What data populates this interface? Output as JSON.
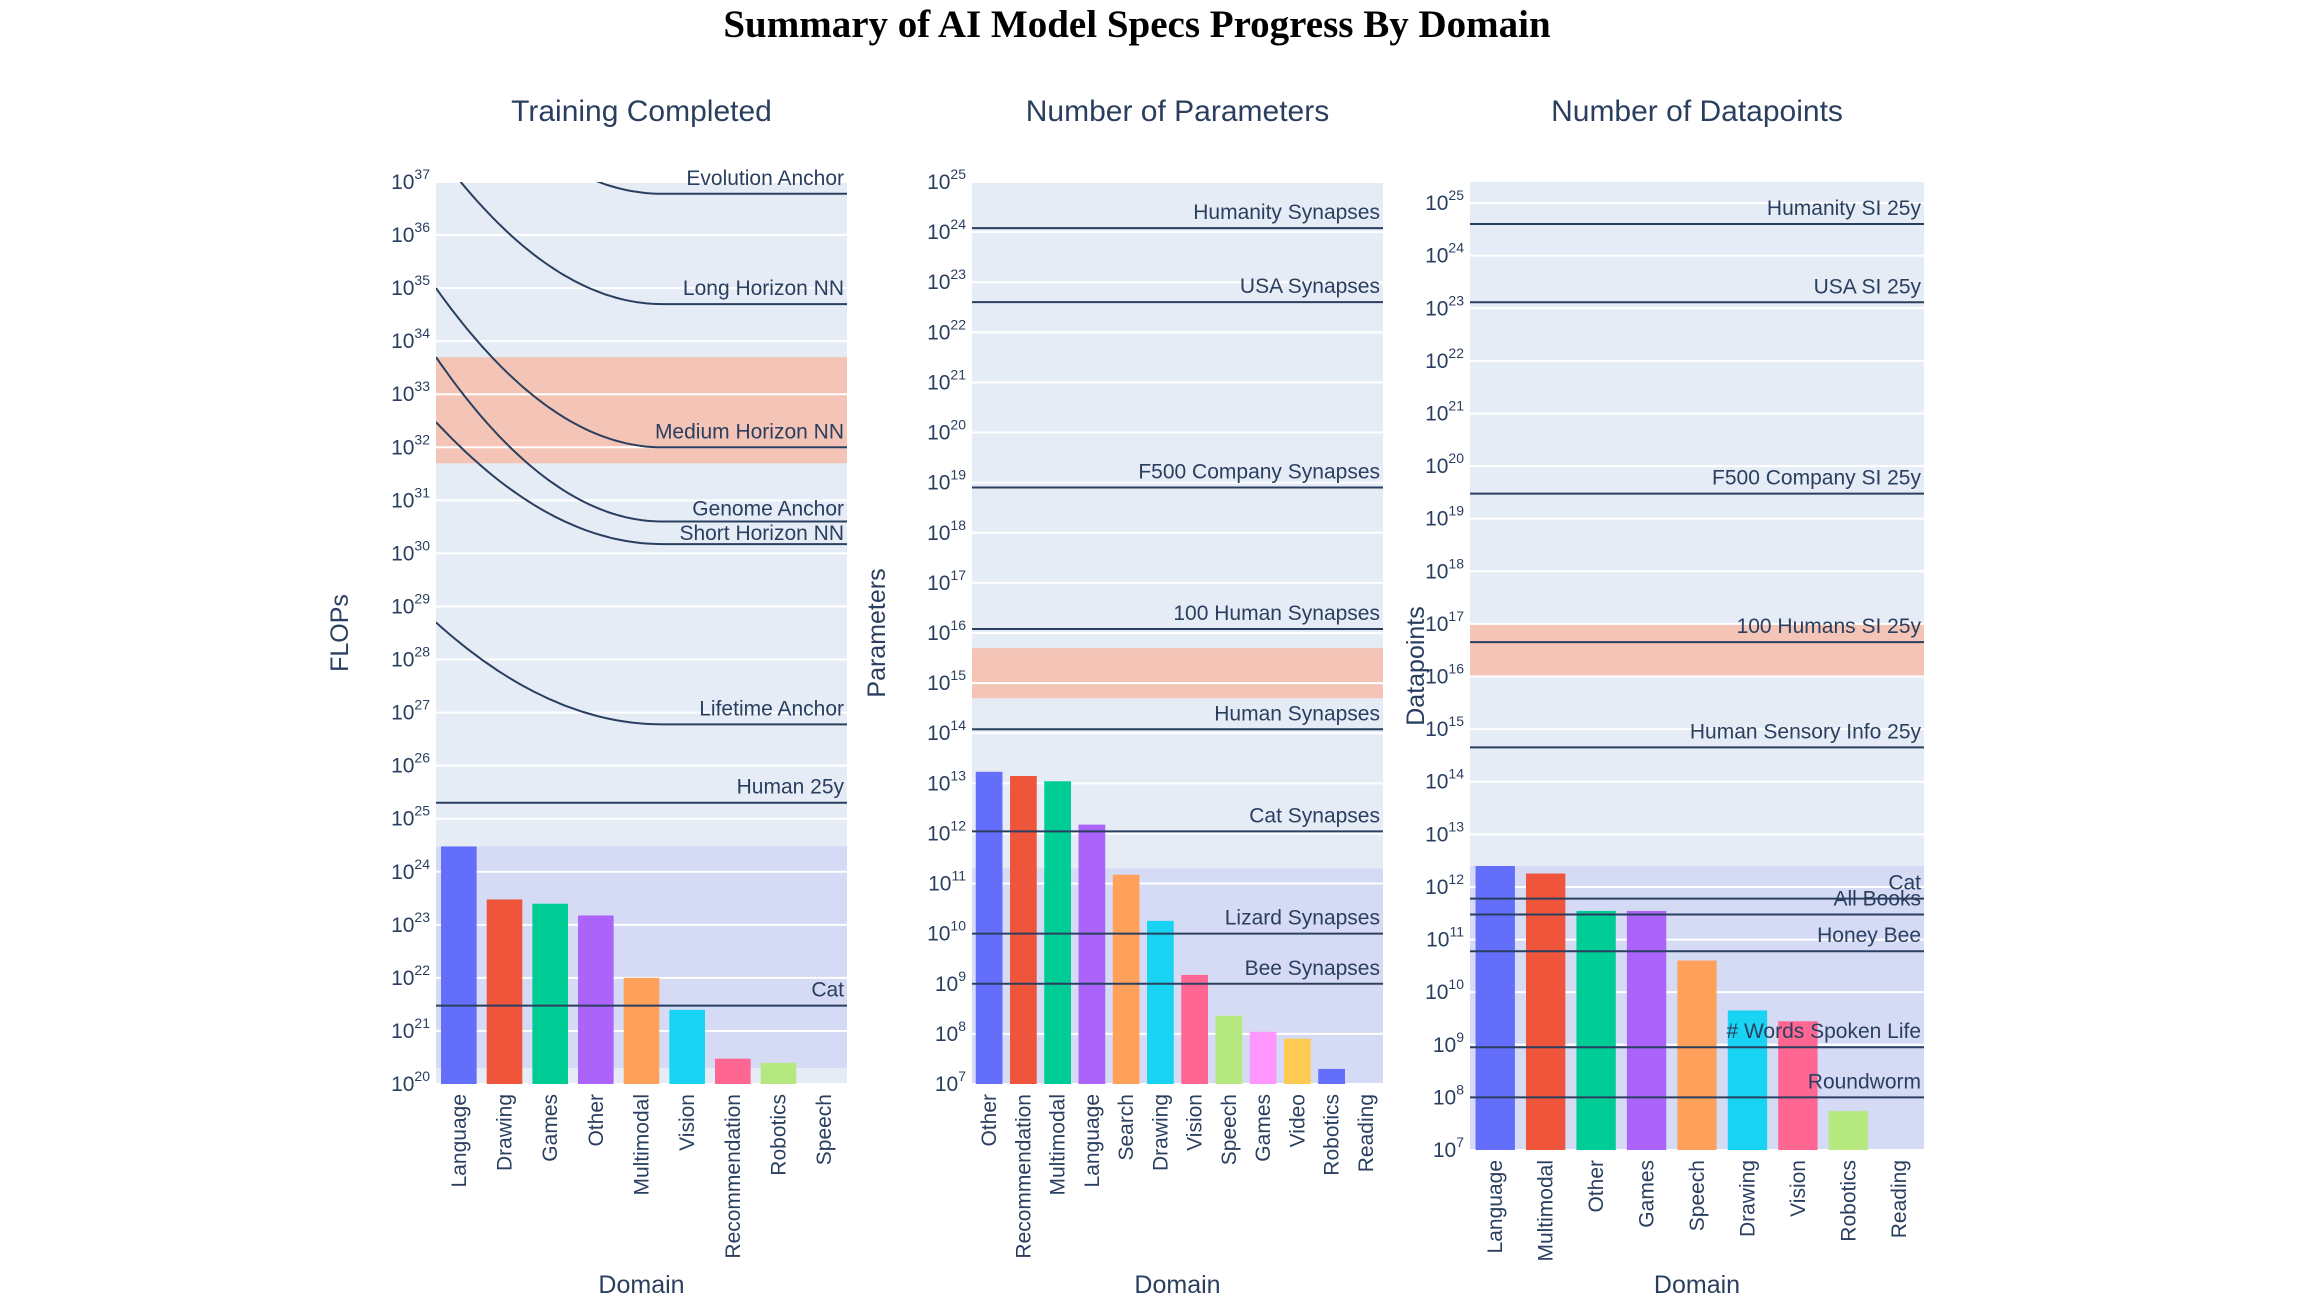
{
  "title": "Summary of AI Model Specs Progress By Domain",
  "colors": {
    "plot_bg": "#e5ecf6",
    "grid": "#ffffff",
    "band": "#f4c5b6",
    "highlight": "#d5daf5",
    "line": "#2a3f5f",
    "palette": [
      "#636efa",
      "#ef553b",
      "#00cc96",
      "#ab63fa",
      "#ffa15a",
      "#19d3f3",
      "#ff6692",
      "#b6e880",
      "#ff97ff",
      "#fecb52"
    ]
  },
  "chart_data": [
    {
      "type": "bar",
      "title": "Training Completed",
      "xlabel": "Domain",
      "ylabel": "FLOPs",
      "yscale": "log",
      "ylim_exp": [
        20,
        37
      ],
      "categories": [
        "Language",
        "Drawing",
        "Games",
        "Other",
        "Multimodal",
        "Vision",
        "Recommendation",
        "Robotics",
        "Speech"
      ],
      "values": [
        3e+24,
        3e+23,
        2.5e+23,
        1.5e+23,
        1e+22,
        2.5e+21,
        3e+20,
        2.5e+20,
        8e+19
      ],
      "highlight_band": [
        2e+20,
        3e+24
      ],
      "shaded_band": [
        5e+31,
        5e+33
      ],
      "ref_lines": [
        {
          "label": "Human 25y",
          "value": 2e+25
        },
        {
          "label": "Cat",
          "value": 3e+21
        }
      ],
      "curves": [
        {
          "label": "Evolution Anchor",
          "start": 4e+39,
          "floor": 6e+36
        },
        {
          "label": "Long Horizon NN",
          "start": 4e+37,
          "floor": 5e+34
        },
        {
          "label": "Medium Horizon NN",
          "start": 1e+35,
          "floor": 1e+32
        },
        {
          "label": "Genome Anchor",
          "start": 5e+33,
          "floor": 4e+30
        },
        {
          "label": "Short Horizon NN",
          "start": 3e+32,
          "floor": 1.5e+30
        },
        {
          "label": "Lifetime Anchor",
          "start": 5e+28,
          "floor": 6e+26
        }
      ]
    },
    {
      "type": "bar",
      "title": "Number of Parameters",
      "xlabel": "Domain",
      "ylabel": "Parameters",
      "yscale": "log",
      "ylim_exp": [
        7,
        25
      ],
      "categories": [
        "Other",
        "Recommendation",
        "Multimodal",
        "Language",
        "Search",
        "Drawing",
        "Vision",
        "Speech",
        "Games",
        "Video",
        "Robotics",
        "Reading"
      ],
      "values": [
        17000000000000.0,
        14000000000000.0,
        11000000000000.0,
        1500000000000.0,
        150000000000.0,
        18000000000.0,
        1500000000.0,
        230000000.0,
        110000000.0,
        80000000.0,
        20000000.0,
        null
      ],
      "highlight_band": [
        10000000.0,
        200000000000.0
      ],
      "shaded_band": [
        500000000000000.0,
        5000000000000000.0
      ],
      "ref_lines": [
        {
          "label": "Humanity Synapses",
          "value": 1.2e+24
        },
        {
          "label": "USA Synapses",
          "value": 4e+22
        },
        {
          "label": "F500 Company Synapses",
          "value": 8e+18
        },
        {
          "label": "100 Human Synapses",
          "value": 1.2e+16
        },
        {
          "label": "Human Synapses",
          "value": 120000000000000.0
        },
        {
          "label": "Cat Synapses",
          "value": 1100000000000.0
        },
        {
          "label": "Lizard Synapses",
          "value": 10000000000.0
        },
        {
          "label": "Bee Synapses",
          "value": 1000000000.0
        }
      ]
    },
    {
      "type": "bar",
      "title": "Number of Datapoints",
      "xlabel": "Domain",
      "ylabel": "Datapoints",
      "yscale": "log",
      "ylim_exp": [
        7,
        25.4
      ],
      "categories": [
        "Language",
        "Multimodal",
        "Other",
        "Games",
        "Speech",
        "Drawing",
        "Vision",
        "Robotics",
        "Reading"
      ],
      "values": [
        2500000000000.0,
        1800000000000.0,
        350000000000.0,
        350000000000.0,
        40000000000.0,
        4500000000.0,
        2800000000.0,
        55000000.0,
        null
      ],
      "highlight_band": [
        10000000.0,
        2500000000000.0
      ],
      "shaded_band": [
        1e+16,
        1e+17
      ],
      "ref_lines": [
        {
          "label": "Humanity SI 25y",
          "value": 4e+24
        },
        {
          "label": "USA SI 25y",
          "value": 1.3e+23
        },
        {
          "label": "F500 Company SI 25y",
          "value": 3e+19
        },
        {
          "label": "100 Humans SI 25y",
          "value": 4.5e+16
        },
        {
          "label": "Human Sensory Info 25y",
          "value": 450000000000000.0
        },
        {
          "label": "Cat",
          "value": 600000000000.0
        },
        {
          "label": "All Books",
          "value": 300000000000.0
        },
        {
          "label": "Honey Bee",
          "value": 60000000000.0
        },
        {
          "label": "# Words Spoken Life",
          "value": 900000000.0
        },
        {
          "label": "Roundworm",
          "value": 100000000.0
        }
      ]
    }
  ]
}
